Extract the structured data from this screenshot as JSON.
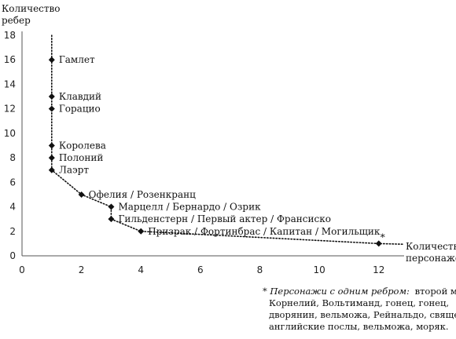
{
  "chart_data": {
    "type": "scatter",
    "ylabel_lines": [
      "Количество",
      "ребер"
    ],
    "xlabel_lines": [
      "Количество",
      "персонажей"
    ],
    "xlim": [
      0,
      12.8
    ],
    "ylim": [
      0,
      18
    ],
    "xticks": [
      0,
      2,
      4,
      6,
      8,
      10,
      12
    ],
    "yticks": [
      0,
      2,
      4,
      6,
      8,
      10,
      12,
      14,
      16,
      18
    ],
    "grid": false,
    "points": [
      {
        "x": 1,
        "y": 16,
        "label": "Гамлет"
      },
      {
        "x": 1,
        "y": 13,
        "label": "Клавдий"
      },
      {
        "x": 1,
        "y": 12,
        "label": "Горацио"
      },
      {
        "x": 1,
        "y": 9,
        "label": "Королева"
      },
      {
        "x": 1,
        "y": 8,
        "label": "Полоний"
      },
      {
        "x": 1,
        "y": 7,
        "label": "Лаэрт"
      },
      {
        "x": 2,
        "y": 5,
        "label": "Офелия / Розенкранц"
      },
      {
        "x": 3,
        "y": 4,
        "label": "Марцелл / Бернардо / Озрик"
      },
      {
        "x": 3,
        "y": 3,
        "label": "Гильденстерн / Первый актер / Франсиско"
      },
      {
        "x": 4,
        "y": 2,
        "label": "Призрак / Фортинбрас / Капитан / Могильщик"
      },
      {
        "x": 12,
        "y": 1,
        "label": "*"
      }
    ],
    "curve": [
      [
        1,
        18
      ],
      [
        1,
        16
      ],
      [
        1,
        13
      ],
      [
        1,
        12
      ],
      [
        1,
        9
      ],
      [
        1,
        8
      ],
      [
        1,
        7
      ],
      [
        2,
        5
      ],
      [
        3,
        4
      ],
      [
        3,
        3
      ],
      [
        4,
        2
      ],
      [
        12,
        1
      ],
      [
        12.8,
        0.95
      ]
    ],
    "footnote": {
      "lead": "* Персонажи с одним ребром:",
      "rest_line1": "второй могильщик,",
      "lines": [
        "Корнелий, Вольтиманд, гонец, гонец,",
        "дворянин, вельможа, Рейнальдо, священник,",
        "английские послы, вельможа, моряк."
      ]
    }
  }
}
